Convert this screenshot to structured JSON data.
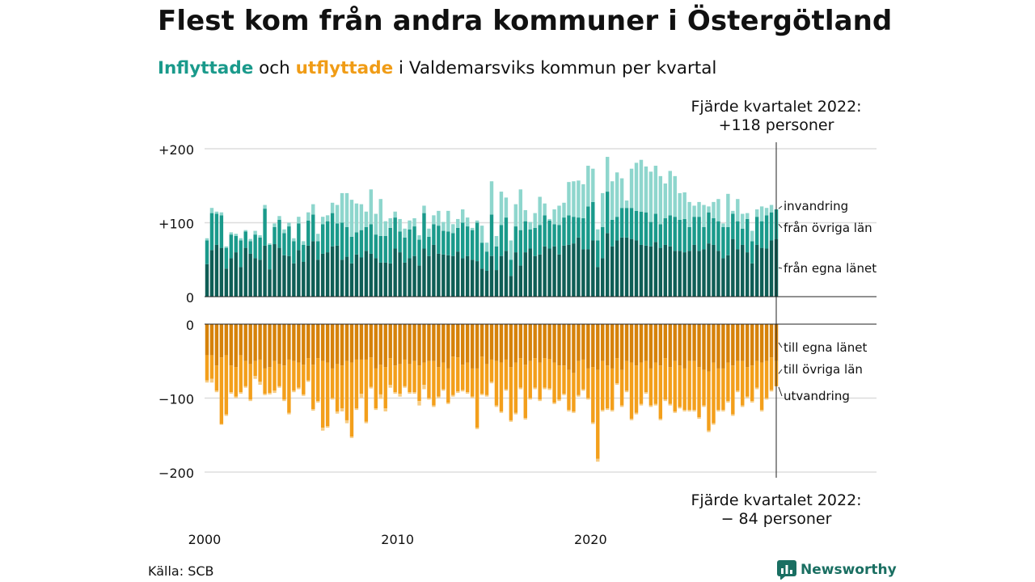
{
  "title": "Flest kom från andra kommuner i Östergötland",
  "subtitle": {
    "in_word": "Inflyttade",
    "and_word": "och",
    "out_word": "utflyttade",
    "rest": "i Valdemarsviks kommun per kvartal"
  },
  "source": "Källa: SCB",
  "brand": "Newsworthy",
  "colors": {
    "in_own_county": "#0f5e56",
    "in_other_counties": "#1a9a8b",
    "in_immigration": "#8ed6cd",
    "out_own_county": "#d6820a",
    "out_other_counties": "#f39f1b",
    "out_emigration": "#f7cc83",
    "grid": "#dddddd",
    "axis": "#222222",
    "brand": "#1a6f62"
  },
  "chart_data": [
    {
      "type": "bar",
      "stacked": true,
      "title": "Inflyttade",
      "start_period": "2000 Q1",
      "x_tick_labels": [
        "2000",
        "2010",
        "2020"
      ],
      "y_tick_labels": [
        "0",
        "+100",
        "+200"
      ],
      "ylim": [
        0,
        200
      ],
      "grid": true,
      "annotation": "Fjärde kvartalet 2022:\n+118 personer",
      "series": [
        {
          "name": "från egna länet",
          "values": [
            44,
            63,
            70,
            66,
            38,
            52,
            60,
            40,
            66,
            58,
            52,
            50,
            69,
            37,
            71,
            66,
            56,
            55,
            45,
            63,
            47,
            69,
            75,
            50,
            58,
            60,
            68,
            69,
            50,
            54,
            45,
            57,
            53,
            62,
            58,
            52,
            46,
            46,
            45,
            65,
            60,
            46,
            52,
            55,
            42,
            65,
            55,
            70,
            58,
            57,
            56,
            55,
            61,
            52,
            55,
            50,
            48,
            38,
            35,
            55,
            36,
            55,
            62,
            28,
            60,
            42,
            60,
            65,
            55,
            57,
            68,
            65,
            68,
            57,
            69,
            70,
            72,
            80,
            64,
            64,
            76,
            40,
            52,
            86,
            68,
            76,
            80,
            80,
            78,
            76,
            70,
            69,
            68,
            74,
            66,
            70,
            68,
            62,
            62,
            60,
            62,
            70,
            62,
            64,
            72,
            70,
            62,
            52,
            56,
            78,
            64,
            70,
            60,
            45,
            70,
            66,
            65,
            76,
            78
          ]
        },
        {
          "name": "från övriga län",
          "values": [
            32,
            50,
            42,
            44,
            28,
            32,
            22,
            36,
            22,
            17,
            32,
            30,
            50,
            33,
            23,
            38,
            30,
            40,
            30,
            36,
            23,
            34,
            36,
            25,
            40,
            42,
            45,
            30,
            50,
            40,
            36,
            30,
            37,
            32,
            40,
            32,
            36,
            36,
            48,
            42,
            28,
            34,
            39,
            40,
            35,
            48,
            26,
            28,
            38,
            32,
            32,
            31,
            32,
            48,
            40,
            40,
            52,
            35,
            26,
            56,
            32,
            42,
            45,
            22,
            35,
            48,
            42,
            26,
            38,
            40,
            42,
            38,
            30,
            40,
            38,
            40,
            36,
            27,
            42,
            58,
            52,
            36,
            42,
            56,
            36,
            32,
            40,
            40,
            42,
            40,
            45,
            45,
            33,
            38,
            32,
            36,
            42,
            46,
            42,
            45,
            32,
            38,
            46,
            30,
            42,
            36,
            40,
            42,
            38,
            34,
            38,
            22,
            45,
            30,
            38,
            36,
            45,
            38,
            40
          ]
        },
        {
          "name": "invandring",
          "values": [
            3,
            7,
            3,
            4,
            2,
            3,
            3,
            3,
            2,
            3,
            5,
            3,
            5,
            2,
            5,
            5,
            5,
            5,
            4,
            9,
            5,
            11,
            14,
            10,
            10,
            8,
            14,
            25,
            40,
            46,
            50,
            39,
            35,
            21,
            47,
            28,
            50,
            20,
            13,
            8,
            17,
            12,
            12,
            11,
            6,
            10,
            11,
            12,
            20,
            12,
            28,
            12,
            12,
            18,
            12,
            3,
            3,
            23,
            12,
            45,
            14,
            45,
            27,
            26,
            30,
            55,
            15,
            10,
            20,
            38,
            16,
            2,
            20,
            26,
            20,
            45,
            48,
            50,
            46,
            55,
            45,
            15,
            46,
            47,
            52,
            60,
            40,
            10,
            53,
            65,
            70,
            62,
            68,
            65,
            65,
            47,
            60,
            55,
            36,
            36,
            34,
            15,
            20,
            30,
            8,
            22,
            30,
            5,
            45,
            4,
            30,
            20,
            8,
            14,
            10,
            20,
            10,
            10,
            0
          ]
        }
      ]
    },
    {
      "type": "bar",
      "stacked": true,
      "title": "Utflyttade",
      "start_period": "2000 Q1",
      "x_tick_labels": [
        "2000",
        "2010",
        "2020"
      ],
      "y_tick_labels": [
        "0",
        "−100",
        "−200"
      ],
      "ylim": [
        -200,
        0
      ],
      "grid": true,
      "annotation": "Fjärde kvartalet 2022:\n− 84 personer",
      "series": [
        {
          "name": "till egna länet",
          "values": [
            -42,
            -42,
            -56,
            -45,
            -42,
            -56,
            -58,
            -42,
            -50,
            -54,
            -50,
            -48,
            -60,
            -58,
            -50,
            -54,
            -56,
            -48,
            -50,
            -52,
            -55,
            -46,
            -55,
            -46,
            -50,
            -52,
            -60,
            -54,
            -56,
            -50,
            -52,
            -48,
            -48,
            -48,
            -45,
            -60,
            -55,
            -58,
            -46,
            -56,
            -54,
            -48,
            -54,
            -50,
            -56,
            -52,
            -50,
            -50,
            -58,
            -52,
            -60,
            -44,
            -45,
            -55,
            -52,
            -60,
            -60,
            -44,
            -54,
            -48,
            -50,
            -52,
            -48,
            -58,
            -52,
            -46,
            -55,
            -50,
            -46,
            -52,
            -46,
            -47,
            -52,
            -56,
            -56,
            -62,
            -66,
            -50,
            -48,
            -60,
            -58,
            -62,
            -50,
            -56,
            -60,
            -46,
            -62,
            -50,
            -52,
            -56,
            -52,
            -50,
            -60,
            -52,
            -56,
            -46,
            -58,
            -50,
            -56,
            -60,
            -50,
            -50,
            -58,
            -62,
            -64,
            -52,
            -60,
            -60,
            -52,
            -56,
            -50,
            -50,
            -58,
            -56,
            -50,
            -52,
            -50,
            -45,
            -50
          ]
        },
        {
          "name": "till övriga län",
          "values": [
            -34,
            -32,
            -34,
            -90,
            -80,
            -36,
            -40,
            -50,
            -34,
            -48,
            -20,
            -30,
            -34,
            -35,
            -40,
            -30,
            -46,
            -72,
            -40,
            -34,
            -40,
            -30,
            -60,
            -58,
            -90,
            -86,
            -40,
            -64,
            -58,
            -80,
            -100,
            -66,
            -46,
            -84,
            -40,
            -54,
            -40,
            -56,
            -36,
            -36,
            -40,
            -36,
            -38,
            -42,
            -48,
            -30,
            -50,
            -60,
            -40,
            -36,
            -46,
            -52,
            -46,
            -34,
            -40,
            -38,
            -80,
            -50,
            -42,
            -30,
            -60,
            -66,
            -40,
            -72,
            -68,
            -40,
            -72,
            -50,
            -40,
            -50,
            -40,
            -40,
            -54,
            -46,
            -38,
            -54,
            -52,
            -46,
            -40,
            -40,
            -75,
            -120,
            -66,
            -58,
            -56,
            -34,
            -48,
            -40,
            -76,
            -64,
            -56,
            -42,
            -50,
            -56,
            -72,
            -56,
            -50,
            -68,
            -56,
            -56,
            -66,
            -66,
            -68,
            -48,
            -80,
            -82,
            -56,
            -56,
            -52,
            -66,
            -40,
            -60,
            -40,
            -48,
            -36,
            -64,
            -50,
            -44,
            -34
          ]
        },
        {
          "name": "utvandring",
          "values": [
            -3,
            -5,
            -2,
            -1,
            -2,
            -2,
            -2,
            -2,
            -2,
            -2,
            -4,
            -4,
            -2,
            -2,
            -3,
            -2,
            -2,
            -2,
            -2,
            -2,
            -2,
            -2,
            -2,
            -2,
            -4,
            -2,
            -2,
            -3,
            -4,
            -4,
            -2,
            -2,
            -6,
            -2,
            -2,
            -2,
            -6,
            -4,
            -4,
            -2,
            -4,
            -2,
            -2,
            -2,
            -6,
            -6,
            -2,
            -2,
            -2,
            -2,
            -2,
            -2,
            -2,
            -2,
            -2,
            -2,
            -2,
            -2,
            -2,
            -2,
            -2,
            -2,
            -2,
            -2,
            -2,
            -2,
            -2,
            -2,
            -2,
            -2,
            -2,
            -2,
            -2,
            -2,
            -2,
            -2,
            -2,
            -2,
            -2,
            -2,
            -2,
            -4,
            -2,
            -2,
            -2,
            -2,
            -2,
            -2,
            -2,
            -2,
            -2,
            -2,
            -2,
            -2,
            -2,
            -2,
            -2,
            -2,
            -2,
            -2,
            -2,
            -2,
            -2,
            -2,
            -2,
            -2,
            -2,
            -2,
            -2,
            -2,
            -2,
            -2,
            -2,
            -2,
            -2,
            -2,
            -2,
            -2,
            0
          ]
        }
      ]
    }
  ]
}
